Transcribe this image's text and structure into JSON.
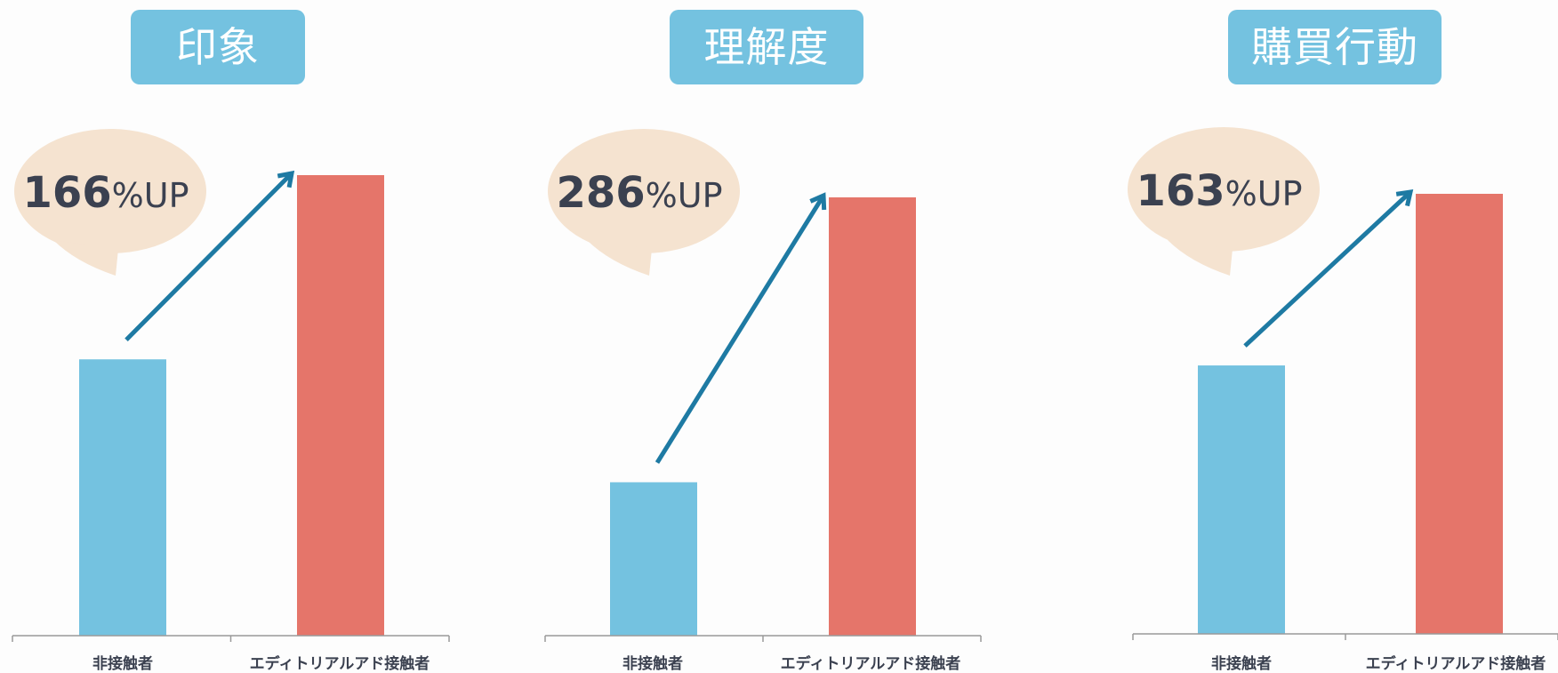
{
  "chart_data": [
    {
      "type": "bar",
      "title": "印象",
      "categories": [
        "非接触者",
        "エディトリアルアド接触者"
      ],
      "values": [
        60,
        100
      ],
      "annotation": {
        "value": "166",
        "unit": "%UP"
      },
      "colors": [
        "#74c2e0",
        "#e5756a"
      ]
    },
    {
      "type": "bar",
      "title": "理解度",
      "categories": [
        "非接触者",
        "エディトリアルアド接触者"
      ],
      "values": [
        35,
        100
      ],
      "annotation": {
        "value": "286",
        "unit": "%UP"
      },
      "colors": [
        "#74c2e0",
        "#e5756a"
      ]
    },
    {
      "type": "bar",
      "title": "購買行動",
      "categories": [
        "非接触者",
        "エディトリアルアド接触者"
      ],
      "values": [
        61,
        100
      ],
      "annotation": {
        "value": "163",
        "unit": "%UP"
      },
      "colors": [
        "#74c2e0",
        "#e5756a"
      ]
    }
  ],
  "theme": {
    "badge_color": "#74c2e0",
    "bubble_color": "#f5e3d0",
    "arrow_color": "#1e7aa3",
    "axis_color": "#9a9a9a",
    "text_color": "#3b4150"
  }
}
